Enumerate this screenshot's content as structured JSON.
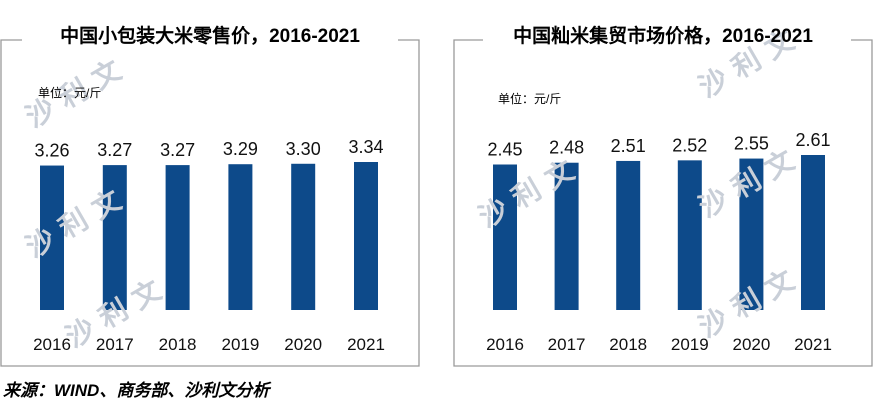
{
  "colors": {
    "bar": "#0d4a8a",
    "frame": "#9a9a9a",
    "watermark": "#c9cfd8"
  },
  "watermark_text": "沙利文",
  "source_note": "来源：WIND、商务部、沙利文分析",
  "chart_data": [
    {
      "type": "bar",
      "title": "中国小包装大米零售价，2016-2021",
      "unit_label": "单位：元/斤",
      "categories": [
        "2016",
        "2017",
        "2018",
        "2019",
        "2020",
        "2021"
      ],
      "values": [
        3.26,
        3.27,
        3.27,
        3.29,
        3.3,
        3.34
      ],
      "value_labels": [
        "3.26",
        "3.27",
        "3.27",
        "3.29",
        "3.30",
        "3.34"
      ],
      "ylim": [
        0,
        3.34
      ],
      "grid": false
    },
    {
      "type": "bar",
      "title": "中国籼米集贸市场价格，2016-2021",
      "unit_label": "单位：元/斤",
      "categories": [
        "2016",
        "2017",
        "2018",
        "2019",
        "2020",
        "2021"
      ],
      "values": [
        2.45,
        2.48,
        2.51,
        2.52,
        2.55,
        2.61
      ],
      "value_labels": [
        "2.45",
        "2.48",
        "2.51",
        "2.52",
        "2.55",
        "2.61"
      ],
      "ylim": [
        0,
        2.61
      ],
      "grid": false
    }
  ]
}
